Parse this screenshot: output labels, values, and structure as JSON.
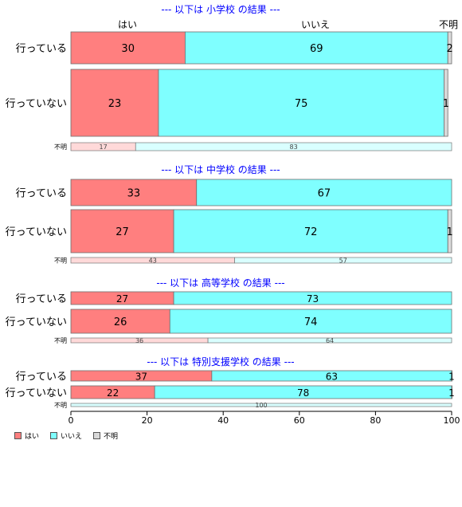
{
  "chart_data": {
    "type": "bar",
    "orientation": "horizontal-stacked-percent",
    "categories_legend": [
      "はい",
      "いいえ",
      "不明"
    ],
    "colors": {
      "はい": "#ff7f7f",
      "いいえ": "#7fffff",
      "不明": "#d9d9d9",
      "title": "#0000ff",
      "unknown_yes": "#ffd9d9",
      "unknown_no": "#d9ffff"
    },
    "column_headers": [
      "はい",
      "いいえ",
      "不明"
    ],
    "xlim": [
      0,
      100
    ],
    "xticks": [
      "0",
      "20",
      "40",
      "60",
      "80",
      "100"
    ],
    "panels": [
      {
        "title": "--- 以下は 小学校 の結果 ---",
        "rows": [
          {
            "label": "行っている",
            "values": [
              30,
              69,
              2
            ]
          },
          {
            "label": "行っていない",
            "values": [
              23,
              75,
              1
            ]
          }
        ],
        "unknown_label": "不明",
        "unknown_values": [
          17,
          83
        ]
      },
      {
        "title": "--- 以下は 中学校 の結果 ---",
        "rows": [
          {
            "label": "行っている",
            "values": [
              33,
              67,
              0
            ]
          },
          {
            "label": "行っていない",
            "values": [
              27,
              72,
              1
            ]
          }
        ],
        "unknown_label": "不明",
        "unknown_values": [
          43,
          57
        ]
      },
      {
        "title": "--- 以下は 高等学校 の結果 ---",
        "rows": [
          {
            "label": "行っている",
            "values": [
              27,
              73,
              0
            ]
          },
          {
            "label": "行っていない",
            "values": [
              26,
              74,
              0
            ]
          }
        ],
        "unknown_label": "不明",
        "unknown_values": [
          36,
          64
        ]
      },
      {
        "title": "--- 以下は 特別支援学校 の結果 ---",
        "rows": [
          {
            "label": "行っている",
            "values": [
              37,
              63,
              1
            ]
          },
          {
            "label": "行っていない",
            "values": [
              22,
              78,
              1
            ]
          }
        ],
        "unknown_label": "不明",
        "unknown_values": [
          0,
          100
        ]
      }
    ]
  },
  "legend": {
    "items": [
      {
        "label": "はい",
        "color": "#ff7f7f"
      },
      {
        "label": "いいえ",
        "color": "#7fffff"
      },
      {
        "label": "不明",
        "color": "#d9d9d9"
      }
    ]
  }
}
